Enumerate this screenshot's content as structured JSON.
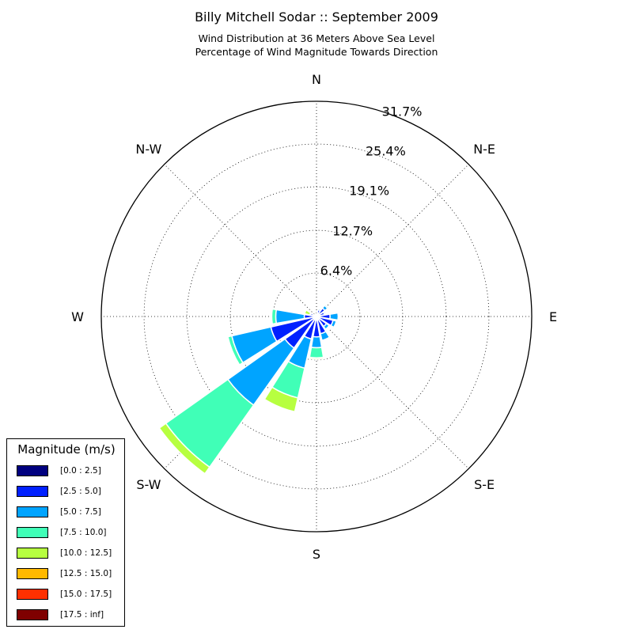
{
  "title": "Billy Mitchell Sodar :: September 2009",
  "subtitle_line1": "Wind Distribution at 36 Meters Above Sea Level",
  "subtitle_line2": "Percentage of Wind Magnitude Towards Direction",
  "colors": {
    "bins": [
      "#00007f",
      "#0020ff",
      "#00a4ff",
      "#40ffb7",
      "#b7ff40",
      "#ffb900",
      "#ff3000",
      "#7f0000"
    ],
    "grid": "#000000",
    "bar_edge": "#ffffff"
  },
  "chart_data": {
    "type": "windrose",
    "title": "Billy Mitchell Sodar :: September 2009",
    "subtitle": "Wind Distribution at 36 Meters Above Sea Level / Percentage of Wind Magnitude Towards Direction",
    "direction_labels": [
      "N",
      "N-E",
      "E",
      "S-E",
      "S",
      "S-W",
      "W",
      "N-W"
    ],
    "radial_ticks": [
      "6.4%",
      "12.7%",
      "19.1%",
      "25.4%",
      "31.7%"
    ],
    "radial_tick_values": [
      6.4,
      12.7,
      19.1,
      25.4,
      31.7
    ],
    "rmax": 31.7,
    "legend_title": "Magnitude (m/s)",
    "bins": [
      "[0.0 : 2.5]",
      "[2.5 : 5.0]",
      "[5.0 : 7.5]",
      "[7.5 : 10.0]",
      "[10.0 : 12.5]",
      "[12.5 : 15.0]",
      "[15.0 : 17.5]",
      "[17.5 : inf]"
    ],
    "sector_width_deg": 22.5,
    "directions_deg": [
      0,
      22.5,
      45,
      67.5,
      90,
      112.5,
      135,
      157.5,
      180,
      202.5,
      225,
      247.5,
      270,
      292.5,
      315,
      337.5
    ],
    "cumulative_percent": [
      [
        0.1,
        0.3,
        0.3,
        0.3,
        0.3,
        0.3,
        0.3,
        0.3
      ],
      [
        0.3,
        1.0,
        1.2,
        1.3,
        1.3,
        1.3,
        1.3,
        1.3
      ],
      [
        0.4,
        1.5,
        2.0,
        2.2,
        2.2,
        2.2,
        2.2,
        2.2
      ],
      [
        0.3,
        1.2,
        1.4,
        1.4,
        1.4,
        1.4,
        1.4,
        1.4
      ],
      [
        0.3,
        2.0,
        3.2,
        3.3,
        3.3,
        3.3,
        3.3,
        3.3
      ],
      [
        0.3,
        2.5,
        3.0,
        3.1,
        3.1,
        3.1,
        3.1,
        3.1
      ],
      [
        0.3,
        1.8,
        2.3,
        2.4,
        2.4,
        2.4,
        2.4,
        2.4
      ],
      [
        0.3,
        2.6,
        3.6,
        3.6,
        3.6,
        3.6,
        3.6,
        3.6
      ],
      [
        0.3,
        3.0,
        4.6,
        6.1,
        6.3,
        6.3,
        6.3,
        6.3
      ],
      [
        0.3,
        3.4,
        7.8,
        12.3,
        14.4,
        14.5,
        14.5,
        14.5
      ],
      [
        0.3,
        5.7,
        16.0,
        27.2,
        28.4,
        28.4,
        28.4,
        28.4
      ],
      [
        0.3,
        6.9,
        12.8,
        13.4,
        13.5,
        13.5,
        13.5,
        13.5
      ],
      [
        0.3,
        1.8,
        6.0,
        6.6,
        6.6,
        6.6,
        6.6,
        6.6
      ],
      [
        0.3,
        0.9,
        1.0,
        1.0,
        1.8,
        1.9,
        1.9,
        1.9
      ],
      [
        0.1,
        0.2,
        0.2,
        0.2,
        0.2,
        0.2,
        0.2,
        0.2
      ],
      [
        0.1,
        0.2,
        0.2,
        0.2,
        0.2,
        0.2,
        0.2,
        0.2
      ]
    ]
  }
}
